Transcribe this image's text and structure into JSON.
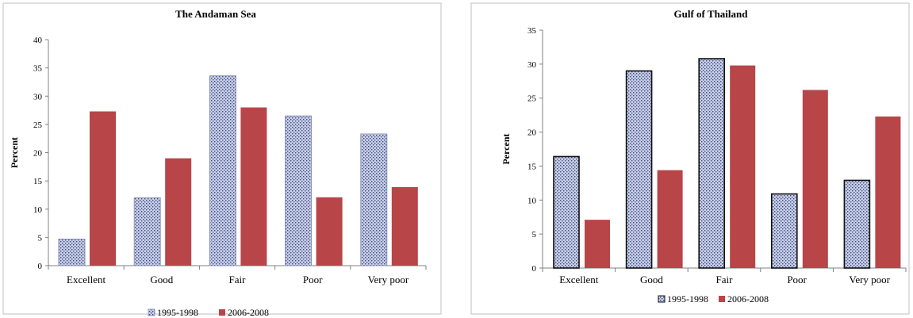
{
  "chart_data": [
    {
      "type": "bar",
      "title": "The Andaman Sea",
      "xlabel": "",
      "ylabel": "Percent",
      "ylim": [
        0,
        40
      ],
      "yticks": [
        0,
        5,
        10,
        15,
        20,
        25,
        30,
        35,
        40
      ],
      "categories": [
        "Excellent",
        "Good",
        "Fair",
        "Poor",
        "Very poor"
      ],
      "series": [
        {
          "name": "1995-1998",
          "values": [
            4.7,
            12.0,
            33.6,
            26.5,
            23.3
          ]
        },
        {
          "name": "2006-2008",
          "values": [
            27.3,
            19.0,
            28.0,
            12.1,
            13.9
          ]
        }
      ],
      "legend_position": "bottom",
      "grid": false
    },
    {
      "type": "bar",
      "title": "Gulf of Thailand",
      "xlabel": "",
      "ylabel": "Percent",
      "ylim": [
        0,
        35
      ],
      "yticks": [
        0,
        5,
        10,
        15,
        20,
        25,
        30,
        35
      ],
      "categories": [
        "Excellent",
        "Good",
        "Fair",
        "Poor",
        "Very poor"
      ],
      "series": [
        {
          "name": "1995-1998",
          "values": [
            16.4,
            29.0,
            30.8,
            10.9,
            12.9
          ]
        },
        {
          "name": "2006-2008",
          "values": [
            7.1,
            14.4,
            29.8,
            26.2,
            22.3
          ]
        }
      ],
      "legend_position": "bottom",
      "grid": false
    }
  ],
  "colors": {
    "series_1_fill": "#c9cfe6",
    "series_1_pattern": "#3a4a86",
    "series_2_fill": "#b84548",
    "axis": "#808080",
    "frame": "#bfbfbf"
  }
}
